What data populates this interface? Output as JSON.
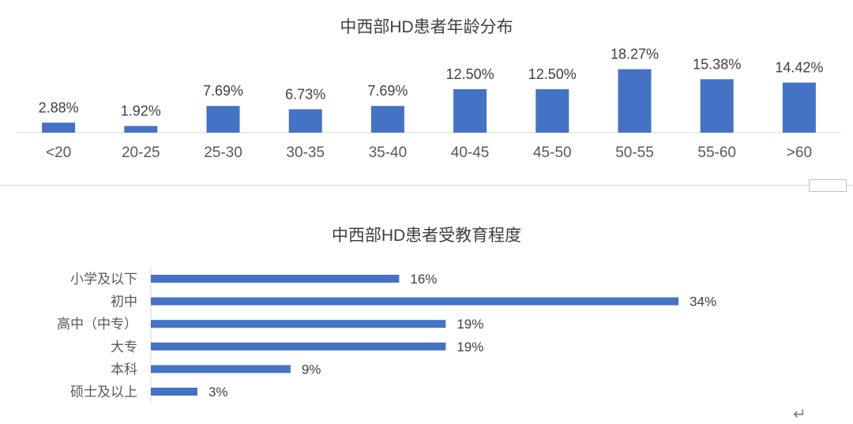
{
  "chart_data": [
    {
      "type": "bar",
      "title": "中西部HD患者年龄分布",
      "categories": [
        "<20",
        "20-25",
        "25-30",
        "30-35",
        "35-40",
        "40-45",
        "45-50",
        "50-55",
        "55-60",
        ">60"
      ],
      "values": [
        2.88,
        1.92,
        7.69,
        6.73,
        7.69,
        12.5,
        12.5,
        18.27,
        15.38,
        14.42
      ],
      "data_labels": [
        "2.88%",
        "1.92%",
        "7.69%",
        "6.73%",
        "7.69%",
        "12.50%",
        "12.50%",
        "18.27%",
        "15.38%",
        "14.42%"
      ],
      "color": "#4472C4",
      "grid": false
    },
    {
      "type": "bar",
      "orientation": "horizontal",
      "title": "中西部HD患者受教育程度",
      "categories": [
        "小学及以下",
        "初中",
        "高中（中专）",
        "大专",
        "本科",
        "硕士及以上"
      ],
      "values": [
        16,
        34,
        19,
        19,
        9,
        3
      ],
      "data_labels": [
        "16%",
        "34%",
        "19%",
        "19%",
        "9%",
        "3%"
      ],
      "color": "#4472C4",
      "grid": false
    }
  ],
  "misc": {
    "return_symbol": "↵"
  }
}
